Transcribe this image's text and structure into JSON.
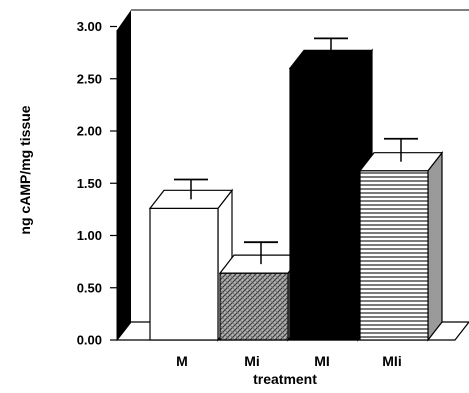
{
  "chart_data": {
    "type": "bar",
    "categories": [
      "M",
      "Mi",
      "MI",
      "MIi"
    ],
    "values": [
      1.26,
      0.64,
      2.6,
      1.62
    ],
    "errors": [
      0.19,
      0.21,
      0.2,
      0.22
    ],
    "fills": [
      "white",
      "crosshatch",
      "black",
      "horizontal-lines"
    ],
    "xlabel": "treatment",
    "ylabel": "ng cAMP/mg tissue",
    "ylim": [
      0,
      3
    ],
    "yticks": [
      "0.00",
      "0.50",
      "1.00",
      "1.50",
      "2.00",
      "2.50",
      "3.00"
    ],
    "grid": false,
    "style": "3d"
  }
}
